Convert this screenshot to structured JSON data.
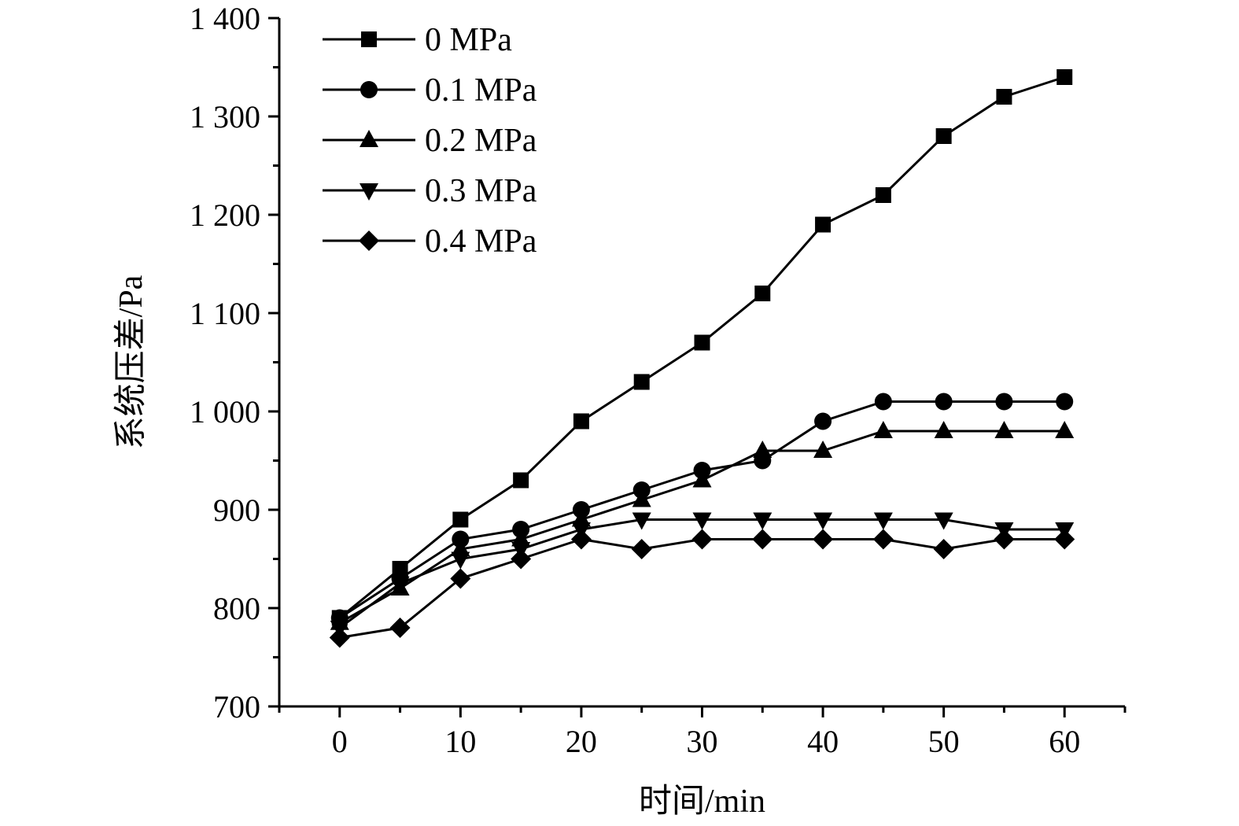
{
  "chart_data": {
    "type": "line",
    "title": "",
    "xlabel": "时间/min",
    "ylabel": "系统压差/Pa",
    "xlim": [
      -5,
      65
    ],
    "ylim": [
      700,
      1400
    ],
    "x_ticks": [
      0,
      10,
      20,
      30,
      40,
      50,
      60
    ],
    "x_tick_labels": [
      "0",
      "10",
      "20",
      "30",
      "40",
      "50",
      "60"
    ],
    "y_ticks": [
      700,
      800,
      900,
      1000,
      1100,
      1200,
      1300,
      1400
    ],
    "y_tick_labels": [
      "700",
      "800",
      "900",
      "1 000",
      "1 100",
      "1 200",
      "1 300",
      "1 400"
    ],
    "grid": false,
    "legend_position": "top-left",
    "x": [
      0,
      5,
      10,
      15,
      20,
      25,
      30,
      35,
      40,
      45,
      50,
      55,
      60
    ],
    "series": [
      {
        "name": "0 MPa",
        "marker": "square",
        "color": "#000000",
        "values": [
          790,
          840,
          890,
          930,
          990,
          1030,
          1070,
          1120,
          1190,
          1220,
          1280,
          1320,
          1340
        ]
      },
      {
        "name": "0.1 MPa",
        "marker": "circle",
        "color": "#000000",
        "values": [
          790,
          830,
          870,
          880,
          900,
          920,
          940,
          950,
          990,
          1010,
          1010,
          1010,
          1010
        ]
      },
      {
        "name": "0.2 MPa",
        "marker": "triangle-up",
        "color": "#000000",
        "values": [
          785,
          820,
          860,
          870,
          890,
          910,
          930,
          960,
          960,
          980,
          980,
          980,
          980
        ]
      },
      {
        "name": "0.3 MPa",
        "marker": "triangle-down",
        "color": "#000000",
        "values": [
          780,
          825,
          850,
          860,
          880,
          890,
          890,
          890,
          890,
          890,
          890,
          880,
          880
        ]
      },
      {
        "name": "0.4 MPa",
        "marker": "diamond",
        "color": "#000000",
        "values": [
          770,
          780,
          830,
          850,
          870,
          860,
          870,
          870,
          870,
          870,
          860,
          870,
          870
        ]
      }
    ]
  }
}
